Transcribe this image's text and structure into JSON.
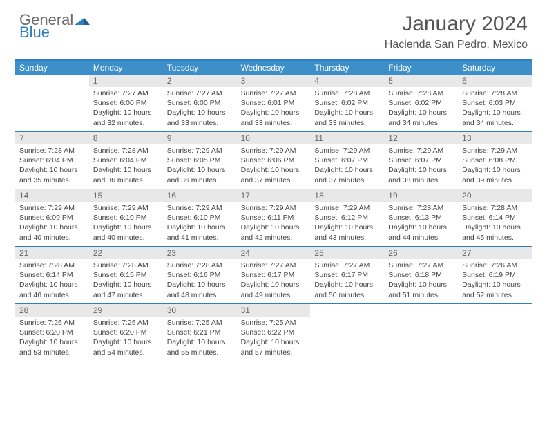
{
  "logo": {
    "word1": "General",
    "word2": "Blue"
  },
  "title": "January 2024",
  "location": "Hacienda San Pedro, Mexico",
  "colors": {
    "header_bar": "#3d8fc9",
    "rule": "#2f7fbf",
    "daynum_bg": "#e8e8e8",
    "text": "#444444",
    "logo_gray": "#6b6b6b",
    "logo_blue": "#2f7fbf"
  },
  "dow": [
    "Sunday",
    "Monday",
    "Tuesday",
    "Wednesday",
    "Thursday",
    "Friday",
    "Saturday"
  ],
  "weeks": [
    [
      {
        "n": "",
        "lines": []
      },
      {
        "n": "1",
        "lines": [
          "Sunrise: 7:27 AM",
          "Sunset: 6:00 PM",
          "Daylight: 10 hours",
          "and 32 minutes."
        ]
      },
      {
        "n": "2",
        "lines": [
          "Sunrise: 7:27 AM",
          "Sunset: 6:00 PM",
          "Daylight: 10 hours",
          "and 33 minutes."
        ]
      },
      {
        "n": "3",
        "lines": [
          "Sunrise: 7:27 AM",
          "Sunset: 6:01 PM",
          "Daylight: 10 hours",
          "and 33 minutes."
        ]
      },
      {
        "n": "4",
        "lines": [
          "Sunrise: 7:28 AM",
          "Sunset: 6:02 PM",
          "Daylight: 10 hours",
          "and 33 minutes."
        ]
      },
      {
        "n": "5",
        "lines": [
          "Sunrise: 7:28 AM",
          "Sunset: 6:02 PM",
          "Daylight: 10 hours",
          "and 34 minutes."
        ]
      },
      {
        "n": "6",
        "lines": [
          "Sunrise: 7:28 AM",
          "Sunset: 6:03 PM",
          "Daylight: 10 hours",
          "and 34 minutes."
        ]
      }
    ],
    [
      {
        "n": "7",
        "lines": [
          "Sunrise: 7:28 AM",
          "Sunset: 6:04 PM",
          "Daylight: 10 hours",
          "and 35 minutes."
        ]
      },
      {
        "n": "8",
        "lines": [
          "Sunrise: 7:28 AM",
          "Sunset: 6:04 PM",
          "Daylight: 10 hours",
          "and 36 minutes."
        ]
      },
      {
        "n": "9",
        "lines": [
          "Sunrise: 7:29 AM",
          "Sunset: 6:05 PM",
          "Daylight: 10 hours",
          "and 36 minutes."
        ]
      },
      {
        "n": "10",
        "lines": [
          "Sunrise: 7:29 AM",
          "Sunset: 6:06 PM",
          "Daylight: 10 hours",
          "and 37 minutes."
        ]
      },
      {
        "n": "11",
        "lines": [
          "Sunrise: 7:29 AM",
          "Sunset: 6:07 PM",
          "Daylight: 10 hours",
          "and 37 minutes."
        ]
      },
      {
        "n": "12",
        "lines": [
          "Sunrise: 7:29 AM",
          "Sunset: 6:07 PM",
          "Daylight: 10 hours",
          "and 38 minutes."
        ]
      },
      {
        "n": "13",
        "lines": [
          "Sunrise: 7:29 AM",
          "Sunset: 6:08 PM",
          "Daylight: 10 hours",
          "and 39 minutes."
        ]
      }
    ],
    [
      {
        "n": "14",
        "lines": [
          "Sunrise: 7:29 AM",
          "Sunset: 6:09 PM",
          "Daylight: 10 hours",
          "and 40 minutes."
        ]
      },
      {
        "n": "15",
        "lines": [
          "Sunrise: 7:29 AM",
          "Sunset: 6:10 PM",
          "Daylight: 10 hours",
          "and 40 minutes."
        ]
      },
      {
        "n": "16",
        "lines": [
          "Sunrise: 7:29 AM",
          "Sunset: 6:10 PM",
          "Daylight: 10 hours",
          "and 41 minutes."
        ]
      },
      {
        "n": "17",
        "lines": [
          "Sunrise: 7:29 AM",
          "Sunset: 6:11 PM",
          "Daylight: 10 hours",
          "and 42 minutes."
        ]
      },
      {
        "n": "18",
        "lines": [
          "Sunrise: 7:29 AM",
          "Sunset: 6:12 PM",
          "Daylight: 10 hours",
          "and 43 minutes."
        ]
      },
      {
        "n": "19",
        "lines": [
          "Sunrise: 7:28 AM",
          "Sunset: 6:13 PM",
          "Daylight: 10 hours",
          "and 44 minutes."
        ]
      },
      {
        "n": "20",
        "lines": [
          "Sunrise: 7:28 AM",
          "Sunset: 6:14 PM",
          "Daylight: 10 hours",
          "and 45 minutes."
        ]
      }
    ],
    [
      {
        "n": "21",
        "lines": [
          "Sunrise: 7:28 AM",
          "Sunset: 6:14 PM",
          "Daylight: 10 hours",
          "and 46 minutes."
        ]
      },
      {
        "n": "22",
        "lines": [
          "Sunrise: 7:28 AM",
          "Sunset: 6:15 PM",
          "Daylight: 10 hours",
          "and 47 minutes."
        ]
      },
      {
        "n": "23",
        "lines": [
          "Sunrise: 7:28 AM",
          "Sunset: 6:16 PM",
          "Daylight: 10 hours",
          "and 48 minutes."
        ]
      },
      {
        "n": "24",
        "lines": [
          "Sunrise: 7:27 AM",
          "Sunset: 6:17 PM",
          "Daylight: 10 hours",
          "and 49 minutes."
        ]
      },
      {
        "n": "25",
        "lines": [
          "Sunrise: 7:27 AM",
          "Sunset: 6:17 PM",
          "Daylight: 10 hours",
          "and 50 minutes."
        ]
      },
      {
        "n": "26",
        "lines": [
          "Sunrise: 7:27 AM",
          "Sunset: 6:18 PM",
          "Daylight: 10 hours",
          "and 51 minutes."
        ]
      },
      {
        "n": "27",
        "lines": [
          "Sunrise: 7:26 AM",
          "Sunset: 6:19 PM",
          "Daylight: 10 hours",
          "and 52 minutes."
        ]
      }
    ],
    [
      {
        "n": "28",
        "lines": [
          "Sunrise: 7:26 AM",
          "Sunset: 6:20 PM",
          "Daylight: 10 hours",
          "and 53 minutes."
        ]
      },
      {
        "n": "29",
        "lines": [
          "Sunrise: 7:26 AM",
          "Sunset: 6:20 PM",
          "Daylight: 10 hours",
          "and 54 minutes."
        ]
      },
      {
        "n": "30",
        "lines": [
          "Sunrise: 7:25 AM",
          "Sunset: 6:21 PM",
          "Daylight: 10 hours",
          "and 55 minutes."
        ]
      },
      {
        "n": "31",
        "lines": [
          "Sunrise: 7:25 AM",
          "Sunset: 6:22 PM",
          "Daylight: 10 hours",
          "and 57 minutes."
        ]
      },
      {
        "n": "",
        "lines": []
      },
      {
        "n": "",
        "lines": []
      },
      {
        "n": "",
        "lines": []
      }
    ]
  ]
}
